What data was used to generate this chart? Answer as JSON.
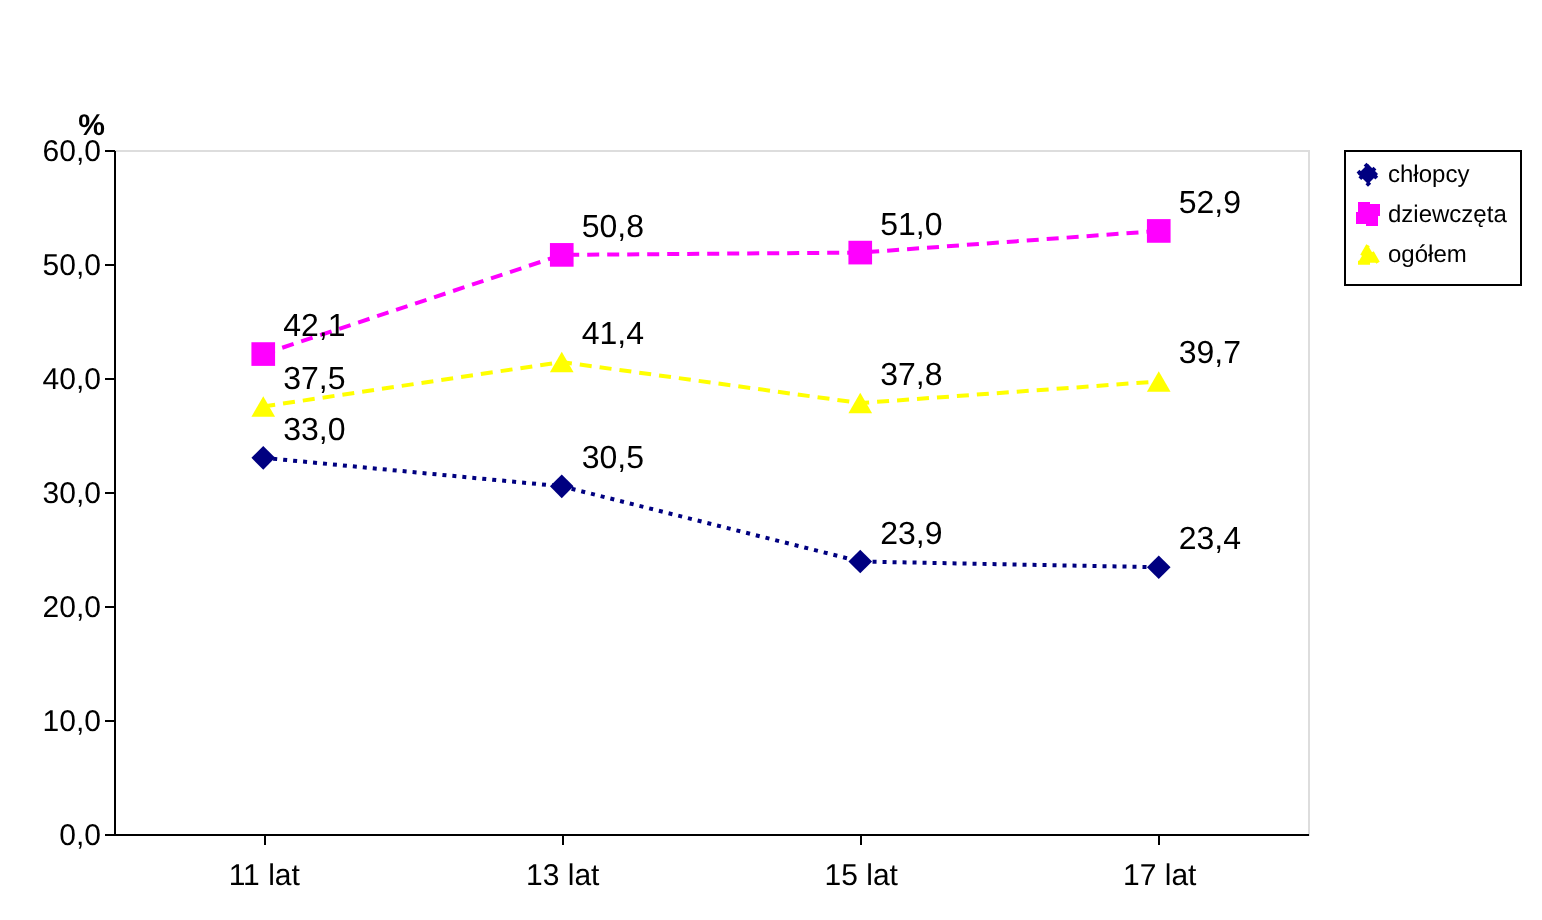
{
  "chart_data": {
    "type": "line",
    "ylabel": "%",
    "categories": [
      "11 lat",
      "13 lat",
      "15 lat",
      "17 lat"
    ],
    "series": [
      {
        "name": "chłopcy",
        "color": "#000080",
        "values": [
          33.0,
          30.5,
          23.9,
          23.4
        ],
        "value_labels": [
          "33,0",
          "30,5",
          "23,9",
          "23,4"
        ],
        "marker": "diamond",
        "line_style": "dotted"
      },
      {
        "name": "dziewczęta",
        "color": "#ff00ff",
        "values": [
          42.1,
          50.8,
          51.0,
          52.9
        ],
        "value_labels": [
          "42,1",
          "50,8",
          "51,0",
          "52,9"
        ],
        "marker": "square",
        "line_style": "dashed"
      },
      {
        "name": "ogółem",
        "color": "#ffff00",
        "values": [
          37.5,
          41.4,
          37.8,
          39.7
        ],
        "value_labels": [
          "37,5",
          "41,4",
          "37,8",
          "39,7"
        ],
        "marker": "triangle",
        "line_style": "dashed"
      }
    ],
    "ylim": [
      0,
      60
    ],
    "yticks": [
      {
        "value": 0,
        "label": "0,0"
      },
      {
        "value": 10,
        "label": "10,0"
      },
      {
        "value": 20,
        "label": "20,0"
      },
      {
        "value": 30,
        "label": "30,0"
      },
      {
        "value": 40,
        "label": "40,0"
      },
      {
        "value": 50,
        "label": "50,0"
      },
      {
        "value": 60,
        "label": "60,0"
      }
    ],
    "legend": "right"
  }
}
